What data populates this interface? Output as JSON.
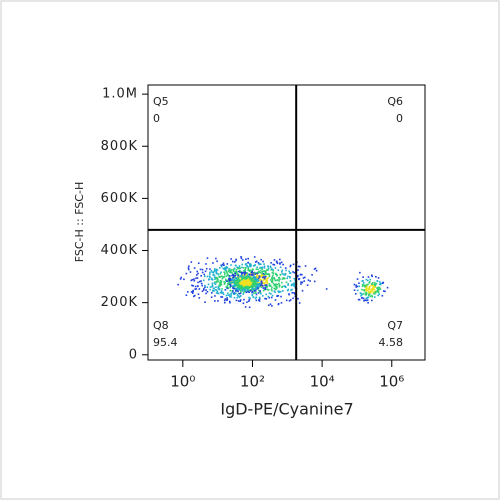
{
  "chart_data": {
    "type": "quadrant-plot",
    "x_label": "IgD-PE/Cyanine7",
    "y_label": "FSC-H :: FSC-H",
    "x_scale": "log",
    "xlim": [
      0.1,
      9000000
    ],
    "xticks": [
      {
        "value": 1,
        "label": "10⁰"
      },
      {
        "value": 100,
        "label": "10²"
      },
      {
        "value": 10000,
        "label": "10⁴"
      },
      {
        "value": 1000000,
        "label": "10⁶"
      }
    ],
    "ylim": [
      -20000,
      1035000
    ],
    "yticks": [
      0,
      {
        "value": 200000,
        "label": "200K"
      },
      {
        "value": 400000,
        "label": "400K"
      },
      {
        "value": 600000,
        "label": "600K"
      },
      {
        "value": 800000,
        "label": "800K"
      },
      {
        "value": 1000000,
        "label": "1.0M"
      }
    ],
    "gate": {
      "x": 1800,
      "y": 479000
    },
    "quadrants": [
      {
        "name": "Q5",
        "value": 0,
        "corner": "top-left"
      },
      {
        "name": "Q6",
        "value": 0,
        "corner": "top-right"
      },
      {
        "name": "Q7",
        "value": 4.58,
        "corner": "bottom-right"
      },
      {
        "name": "Q8",
        "value": 95.4,
        "corner": "bottom-left"
      }
    ]
  }
}
